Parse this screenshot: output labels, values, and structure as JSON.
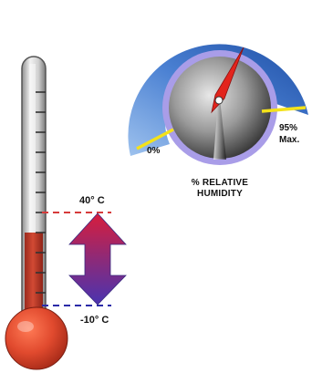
{
  "thermometer": {
    "upper_label": "40° C",
    "lower_label": "-10° C",
    "colors": {
      "liquid": "#c33a2b",
      "bulb": "#e24a2c",
      "upper_line": "#d63a3a",
      "lower_line": "#2a2aa8"
    }
  },
  "range_arrow": {
    "icon": "double-arrow-icon",
    "colors": {
      "top": "#d81d3c",
      "bottom": "#4a33b0"
    }
  },
  "gauge": {
    "min_label": "0%",
    "max_label_line1": "95%",
    "max_label_line2": "Max.",
    "title_line1": "% RELATIVE",
    "title_line2": "HUMIDITY",
    "colors": {
      "arc": "#3d72c8",
      "ring": "#a79be6",
      "marker": "#f4e21a",
      "needle": "#e3241c"
    }
  }
}
